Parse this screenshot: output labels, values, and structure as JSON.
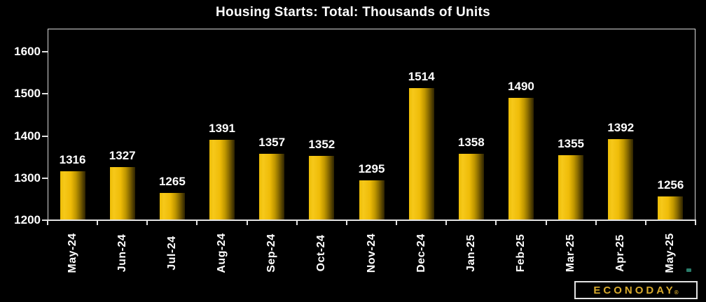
{
  "title": "Housing Starts: Total: Thousands of Units",
  "branding": {
    "logo_text": "ECONODAY",
    "registered_mark": "®",
    "logo_color": "#d9ab2e"
  },
  "colors": {
    "background": "#000000",
    "text": "#ffffff",
    "axis": "#e3e3e3",
    "bar_bright": "#f6c81a",
    "bar_dark": "#2e2400"
  },
  "chart_data": {
    "type": "bar",
    "title": "Housing Starts: Total: Thousands of Units",
    "categories": [
      "May-24",
      "Jun-24",
      "Jul-24",
      "Aug-24",
      "Sep-24",
      "Oct-24",
      "Nov-24",
      "Dec-24",
      "Jan-25",
      "Feb-25",
      "Mar-25",
      "Apr-25",
      "May-25"
    ],
    "values": [
      1316,
      1327,
      1265,
      1391,
      1357,
      1352,
      1295,
      1514,
      1358,
      1490,
      1355,
      1392,
      1256
    ],
    "value_labels_shown": true,
    "xlabel": "",
    "ylabel": "",
    "ylim": [
      1200,
      1655
    ],
    "yticks": [
      1200,
      1300,
      1400,
      1500,
      1600
    ],
    "grid": false,
    "legend": "none",
    "background": "#000000",
    "bar_gradient": [
      "#f6c81a",
      "#2e2400"
    ]
  }
}
